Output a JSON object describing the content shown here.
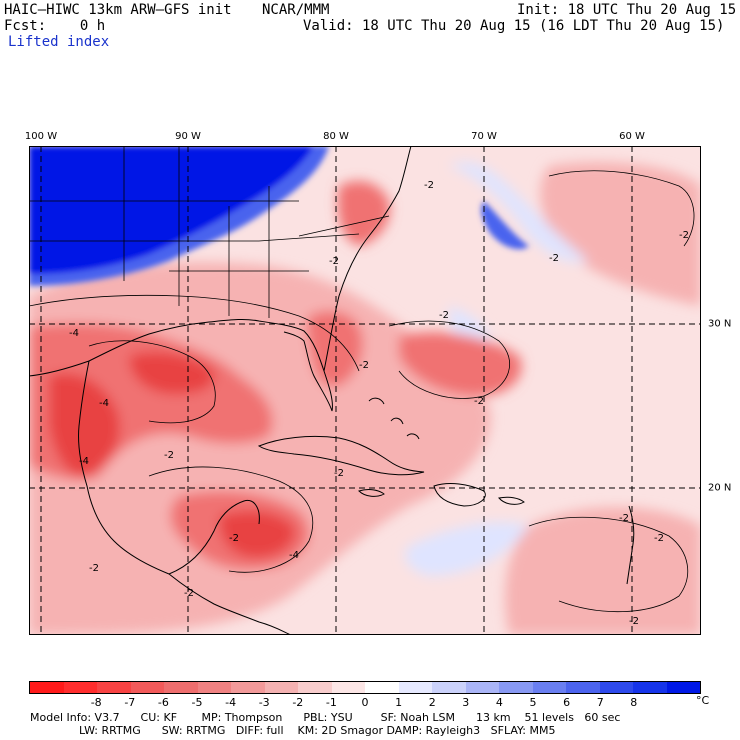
{
  "header": {
    "model": "HAIC–HIWC 13km ARW–GFS init",
    "org": "NCAR/MMM",
    "init": "Init: 18 UTC Thu 20 Aug 15",
    "fcst": "Fcst:    0 h",
    "valid": "Valid: 18 UTC Thu 20 Aug 15 (16 LDT Thu 20 Aug 15)",
    "field": "Lifted index"
  },
  "map": {
    "lon_labels": [
      "100 W",
      "90 W",
      "80 W",
      "70 W",
      "60 W"
    ],
    "lat_labels": [
      "30 N",
      "20 N"
    ],
    "contour_label": "-2",
    "contour_label_4": "-4",
    "colors": {
      "deep_blue": "#0018e6",
      "mid_blue": "#4a63ee",
      "light_blue": "#dfe4ff",
      "pale_pink": "#fbe2e2",
      "light_red": "#f6b2b2",
      "mid_red": "#f07272",
      "strong_red": "#e84343"
    }
  },
  "colorbar": {
    "labels": [
      "-8",
      "-7",
      "-6",
      "-5",
      "-4",
      "-3",
      "-2",
      "-1",
      "0",
      "1",
      "2",
      "3",
      "4",
      "5",
      "6",
      "7",
      "8"
    ],
    "unit": "°C",
    "colors": [
      "#ff1a1a",
      "#ff2d2d",
      "#f84343",
      "#f25a5a",
      "#ee6e6e",
      "#f08282",
      "#f29a9a",
      "#f4b2b2",
      "#f8cdcd",
      "#fce6e6",
      "#ffffff",
      "#e6e9ff",
      "#cbd2fb",
      "#aab5f7",
      "#8899f3",
      "#6a7ff1",
      "#4c64ee",
      "#2e4aec",
      "#1634ea",
      "#0018e6"
    ]
  },
  "footer": {
    "line1": "Model Info: V3.7      CU: KF       MP: Thompson      PBL: YSU        SF: Noah LSM      13 km    51 levels   60 sec",
    "line2": "              LW: RRTMG      SW: RRTMG   DIFF: full    KM: 2D Smagor DAMP: Rayleigh3   SFLAY: MM5"
  }
}
